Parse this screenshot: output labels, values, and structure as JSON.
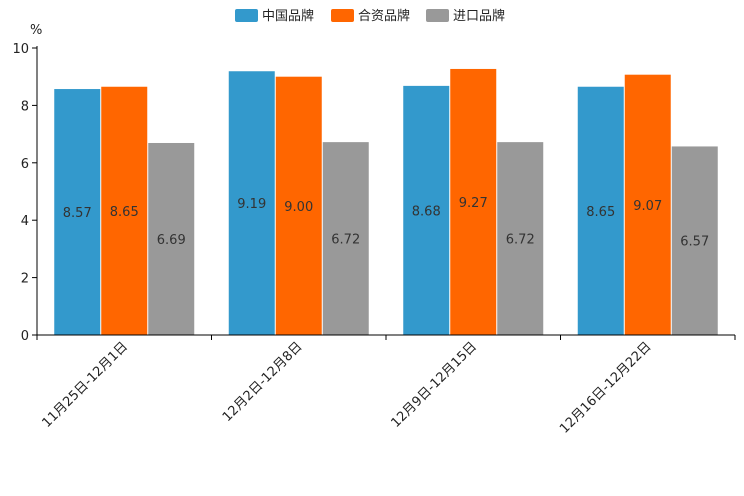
{
  "chart_data": {
    "type": "bar",
    "title": "",
    "xlabel": "",
    "ylabel": "%",
    "ylim": [
      0,
      10
    ],
    "yticks": [
      0,
      2,
      4,
      6,
      8,
      10
    ],
    "grid": false,
    "legend_position": "top-center",
    "categories": [
      "11月25日-12月1日",
      "12月2日-12月8日",
      "12月9日-12月15日",
      "12月16日-12月22日"
    ],
    "series": [
      {
        "name": "中国品牌",
        "color": "#3399cc",
        "values": [
          8.57,
          9.19,
          8.68,
          8.65
        ]
      },
      {
        "name": "合资品牌",
        "color": "#ff6600",
        "values": [
          8.65,
          9.0,
          9.27,
          9.07
        ]
      },
      {
        "name": "进口品牌",
        "color": "#999999",
        "values": [
          6.69,
          6.72,
          6.72,
          6.57
        ]
      }
    ]
  }
}
